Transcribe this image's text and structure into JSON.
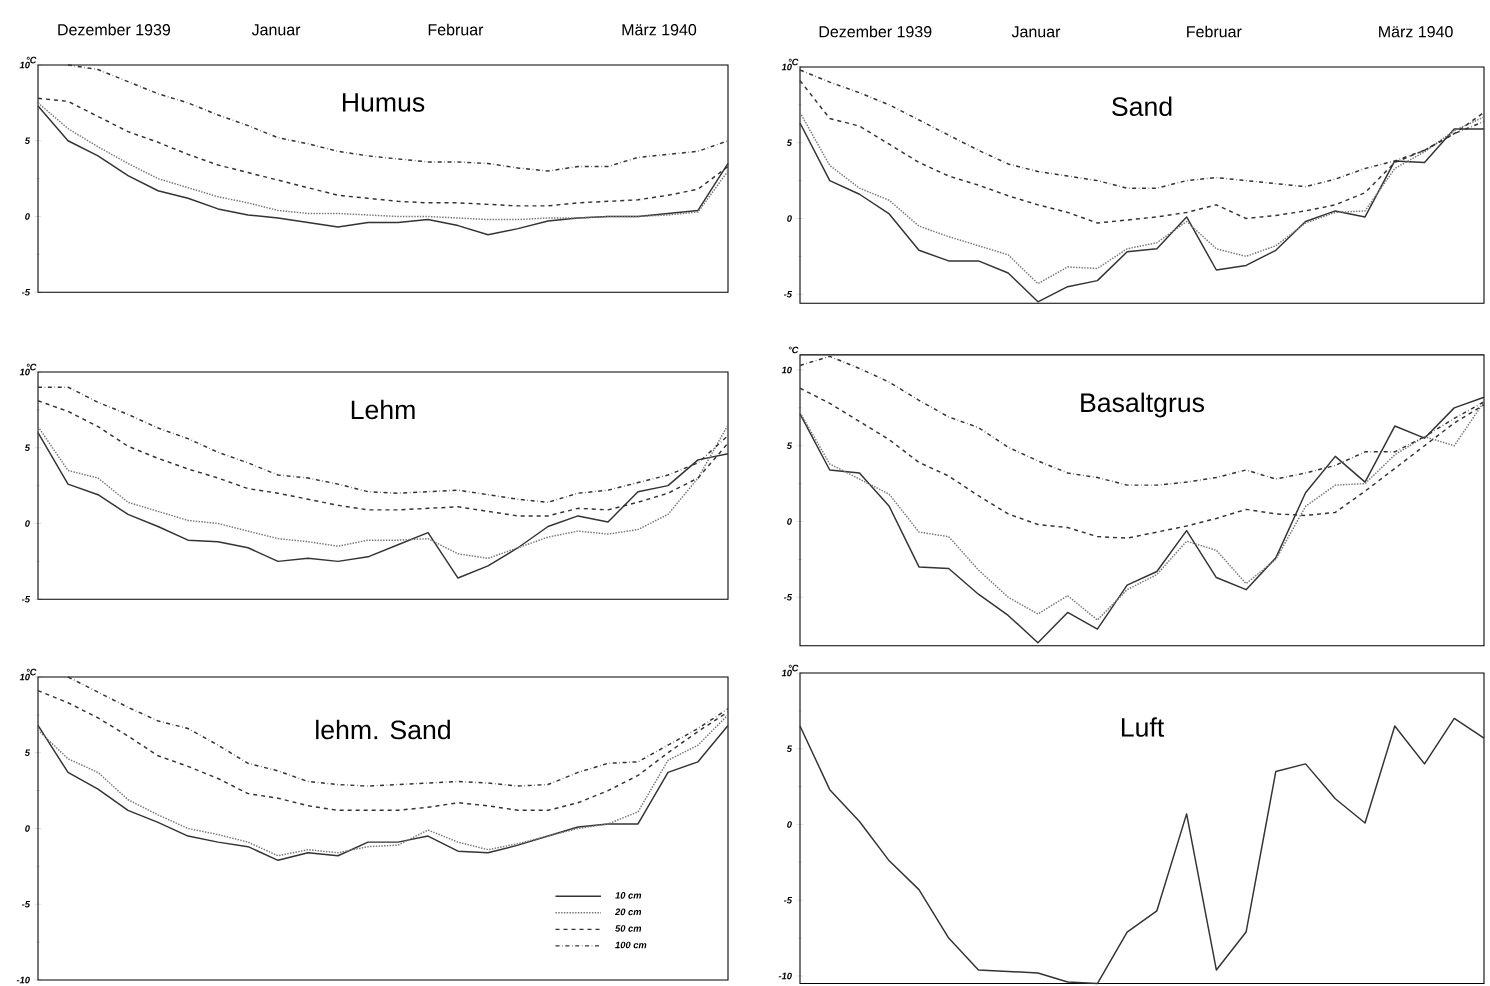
{
  "chart_data": [
    {
      "type": "line",
      "title": "Humus",
      "ylabel": "°C",
      "ylim": [
        -5,
        10
      ],
      "yticks": [
        10,
        5,
        0,
        -5
      ],
      "tick_labels": "y",
      "annotations": [
        "Dezember 1939",
        "Januar",
        "Februar",
        "März 1940"
      ],
      "categories": [
        null,
        null,
        null,
        null,
        null,
        null,
        null,
        null,
        null,
        null,
        null,
        null,
        null,
        null,
        null,
        null,
        null,
        null,
        null,
        null,
        null,
        null,
        null,
        null
      ],
      "series": [
        {
          "color": "#333333",
          "line_style": "solid",
          "values": [
            7.3,
            5.0,
            4.0,
            2.7,
            1.7,
            1.2,
            0.5,
            0.1,
            -0.1,
            -0.4,
            -0.7,
            -0.4,
            -0.4,
            -0.2,
            -0.6,
            -1.2,
            -0.8,
            -0.3,
            -0.1,
            0.0,
            0.0,
            0.2,
            0.4,
            3.5
          ]
        },
        {
          "color": "#777777",
          "line_style": "dotted",
          "values": [
            7.5,
            5.8,
            4.6,
            3.5,
            2.5,
            1.9,
            1.3,
            0.9,
            0.4,
            0.2,
            0.2,
            0.1,
            0.0,
            0.0,
            -0.1,
            -0.2,
            -0.2,
            -0.1,
            -0.1,
            0.0,
            0.0,
            0.1,
            0.3,
            3.0
          ]
        },
        {
          "color": "#333333",
          "line_style": "dashed",
          "values": [
            7.8,
            7.6,
            6.6,
            5.6,
            4.9,
            4.1,
            3.4,
            2.9,
            2.4,
            1.9,
            1.4,
            1.2,
            1.0,
            0.9,
            0.9,
            0.8,
            0.7,
            0.7,
            0.9,
            1.0,
            1.1,
            1.4,
            1.8,
            3.3
          ]
        },
        {
          "color": "#333333",
          "line_style": "dashdot",
          "values": [
            null,
            10.0,
            9.7,
            8.9,
            8.1,
            7.5,
            6.7,
            6.0,
            5.2,
            4.8,
            4.3,
            4.0,
            3.8,
            3.6,
            3.6,
            3.5,
            3.2,
            3.0,
            3.3,
            3.3,
            3.9,
            4.1,
            4.3,
            5.0
          ]
        }
      ]
    },
    {
      "type": "line",
      "title": "Sand",
      "ylabel": "°C",
      "ylim": [
        -5.6,
        10
      ],
      "yticks": [
        10,
        5,
        0,
        -5
      ],
      "tick_labels": "y",
      "annotations": [
        "Dezember 1939",
        "Januar",
        "Februar",
        "März 1940"
      ],
      "categories": [
        null,
        null,
        null,
        null,
        null,
        null,
        null,
        null,
        null,
        null,
        null,
        null,
        null,
        null,
        null,
        null,
        null,
        null,
        null,
        null,
        null,
        null,
        null,
        null
      ],
      "series": [
        {
          "color": "#333333",
          "line_style": "solid",
          "values": [
            6.3,
            2.5,
            1.6,
            0.3,
            -2.1,
            -2.8,
            -2.8,
            -3.6,
            -5.5,
            -4.5,
            -4.1,
            -2.2,
            -2.0,
            0.1,
            -3.4,
            -3.1,
            -2.1,
            -0.2,
            0.5,
            0.1,
            3.8,
            3.7,
            5.9,
            5.9
          ]
        },
        {
          "color": "#777777",
          "line_style": "dotted",
          "values": [
            7.0,
            3.5,
            2.0,
            1.2,
            -0.5,
            -1.2,
            -1.8,
            -2.4,
            -4.3,
            -3.2,
            -3.3,
            -2.0,
            -1.6,
            -0.2,
            -2.0,
            -2.5,
            -1.8,
            -0.3,
            0.4,
            0.5,
            3.3,
            4.4,
            5.8,
            6.7
          ]
        },
        {
          "color": "#333333",
          "line_style": "dashed",
          "values": [
            9.1,
            6.6,
            6.1,
            4.9,
            3.7,
            2.8,
            2.2,
            1.5,
            0.9,
            0.4,
            -0.3,
            -0.1,
            0.1,
            0.4,
            0.9,
            0.0,
            0.2,
            0.5,
            0.9,
            1.7,
            3.7,
            4.5,
            5.6,
            7.0
          ]
        },
        {
          "color": "#333333",
          "line_style": "dashdot",
          "values": [
            9.8,
            9.0,
            8.3,
            7.5,
            6.5,
            5.5,
            4.5,
            3.6,
            3.1,
            2.8,
            2.5,
            2.0,
            2.0,
            2.5,
            2.7,
            2.5,
            2.3,
            2.1,
            2.6,
            3.3,
            3.8,
            4.5,
            5.6,
            6.4
          ]
        }
      ]
    },
    {
      "type": "line",
      "title": "Lehm",
      "ylabel": "°C",
      "ylim": [
        -5,
        10
      ],
      "yticks": [
        10,
        5,
        0,
        -5
      ],
      "tick_labels": "y",
      "categories": [
        null,
        null,
        null,
        null,
        null,
        null,
        null,
        null,
        null,
        null,
        null,
        null,
        null,
        null,
        null,
        null,
        null,
        null,
        null,
        null,
        null,
        null,
        null,
        null
      ],
      "series": [
        {
          "color": "#333333",
          "line_style": "solid",
          "values": [
            6.0,
            2.6,
            1.9,
            0.6,
            -0.2,
            -1.1,
            -1.2,
            -1.6,
            -2.5,
            -2.3,
            -2.5,
            -2.2,
            -1.4,
            -0.6,
            -3.6,
            -2.8,
            -1.6,
            -0.2,
            0.5,
            0.1,
            2.1,
            2.5,
            4.2,
            4.6
          ]
        },
        {
          "color": "#777777",
          "line_style": "dotted",
          "values": [
            6.4,
            3.5,
            3.0,
            1.4,
            0.8,
            0.2,
            0.0,
            -0.5,
            -1.0,
            -1.2,
            -1.5,
            -1.1,
            -1.1,
            -1.0,
            -2.0,
            -2.3,
            -1.6,
            -0.9,
            -0.5,
            -0.7,
            -0.4,
            0.6,
            3.0,
            6.5
          ]
        },
        {
          "color": "#333333",
          "line_style": "dashed",
          "values": [
            8.1,
            7.4,
            6.4,
            5.1,
            4.3,
            3.6,
            3.0,
            2.3,
            2.0,
            1.6,
            1.2,
            0.9,
            0.9,
            1.0,
            1.1,
            0.8,
            0.5,
            0.5,
            1.0,
            0.9,
            1.4,
            2.0,
            3.0,
            5.3
          ]
        },
        {
          "color": "#333333",
          "line_style": "dashdot",
          "values": [
            9.0,
            9.0,
            8.0,
            7.2,
            6.3,
            5.6,
            4.7,
            4.0,
            3.2,
            3.0,
            2.6,
            2.1,
            2.0,
            2.1,
            2.2,
            1.9,
            1.6,
            1.4,
            2.0,
            2.2,
            2.7,
            3.2,
            4.0,
            5.8
          ]
        }
      ]
    },
    {
      "type": "line",
      "title": "Basaltgrus",
      "ylabel": "°C",
      "ylim": [
        -8.2,
        11
      ],
      "yticks": [
        10,
        5,
        0,
        -5
      ],
      "tick_labels": "y",
      "categories": [
        null,
        null,
        null,
        null,
        null,
        null,
        null,
        null,
        null,
        null,
        null,
        null,
        null,
        null,
        null,
        null,
        null,
        null,
        null,
        null,
        null,
        null,
        null,
        null
      ],
      "series": [
        {
          "color": "#333333",
          "line_style": "solid",
          "values": [
            7.1,
            3.4,
            3.2,
            1.0,
            -3.0,
            -3.1,
            -4.8,
            -6.2,
            -8.0,
            -6.0,
            -7.1,
            -4.2,
            -3.3,
            -0.6,
            -3.7,
            -4.5,
            -2.4,
            1.9,
            4.3,
            2.6,
            6.3,
            5.5,
            7.5,
            8.2
          ]
        },
        {
          "color": "#777777",
          "line_style": "dotted",
          "values": [
            7.2,
            3.8,
            2.8,
            1.8,
            -0.7,
            -1.0,
            -3.2,
            -5.0,
            -6.1,
            -4.9,
            -6.5,
            -4.5,
            -3.5,
            -1.3,
            -1.9,
            -4.1,
            -2.5,
            1.0,
            2.4,
            2.5,
            4.4,
            5.6,
            5.0,
            7.9
          ]
        },
        {
          "color": "#333333",
          "line_style": "dashed",
          "values": [
            8.8,
            7.8,
            6.6,
            5.4,
            3.9,
            3.0,
            1.7,
            0.5,
            -0.2,
            -0.4,
            -1.0,
            -1.1,
            -0.7,
            -0.3,
            0.2,
            0.8,
            0.5,
            0.4,
            0.6,
            2.0,
            3.5,
            5.0,
            6.5,
            7.7
          ]
        },
        {
          "color": "#333333",
          "line_style": "dashdot",
          "values": [
            10.3,
            10.9,
            10.1,
            9.2,
            8.0,
            6.9,
            6.2,
            4.9,
            4.0,
            3.2,
            2.9,
            2.4,
            2.4,
            2.6,
            2.9,
            3.4,
            2.8,
            3.2,
            3.7,
            4.6,
            4.6,
            5.6,
            6.8,
            7.9
          ]
        }
      ]
    },
    {
      "type": "line",
      "title": "lehm. Sand",
      "ylabel": "°C",
      "ylim": [
        -10,
        10
      ],
      "yticks": [
        10,
        5,
        0,
        -5,
        -10
      ],
      "tick_labels": "y",
      "legend": "bottom right",
      "categories": [
        null,
        null,
        null,
        null,
        null,
        null,
        null,
        null,
        null,
        null,
        null,
        null,
        null,
        null,
        null,
        null,
        null,
        null,
        null,
        null,
        null,
        null,
        null,
        null
      ],
      "series": [
        {
          "name": "10 cm",
          "color": "#333333",
          "line_style": "solid",
          "values": [
            6.8,
            3.7,
            2.6,
            1.2,
            0.4,
            -0.5,
            -0.9,
            -1.2,
            -2.1,
            -1.6,
            -1.8,
            -0.9,
            -0.9,
            -0.5,
            -1.5,
            -1.6,
            -1.1,
            -0.5,
            0.1,
            0.3,
            0.3,
            3.7,
            4.4,
            6.8
          ]
        },
        {
          "name": "20 cm",
          "color": "#777777",
          "line_style": "dotted",
          "values": [
            6.5,
            4.6,
            3.7,
            1.9,
            0.9,
            0.0,
            -0.4,
            -0.9,
            -1.8,
            -1.4,
            -1.6,
            -1.2,
            -1.1,
            -0.1,
            -0.9,
            -1.4,
            -1.0,
            -0.5,
            0.0,
            0.3,
            1.1,
            4.5,
            5.5,
            7.5
          ]
        },
        {
          "name": "50 cm",
          "color": "#333333",
          "line_style": "dashed",
          "values": [
            9.1,
            8.3,
            7.3,
            6.1,
            4.8,
            4.1,
            3.3,
            2.3,
            2.0,
            1.5,
            1.2,
            1.2,
            1.2,
            1.4,
            1.7,
            1.5,
            1.2,
            1.2,
            1.7,
            2.5,
            3.5,
            5.0,
            6.4,
            7.7
          ]
        },
        {
          "name": "100 cm",
          "color": "#333333",
          "line_style": "dashdot",
          "values": [
            null,
            10.0,
            9.0,
            8.0,
            7.1,
            6.6,
            5.5,
            4.3,
            3.8,
            3.1,
            2.9,
            2.8,
            2.9,
            3.0,
            3.1,
            3.0,
            2.8,
            2.9,
            3.7,
            4.3,
            4.4,
            5.5,
            6.6,
            7.9
          ]
        }
      ]
    },
    {
      "type": "line",
      "title": "Luft",
      "ylabel": "°C",
      "ylim": [
        -10.5,
        10
      ],
      "yticks": [
        10,
        5,
        0,
        -5,
        -10
      ],
      "tick_labels": "y",
      "categories": [
        null,
        null,
        null,
        null,
        null,
        null,
        null,
        null,
        null,
        null,
        null,
        null,
        null,
        null,
        null,
        null,
        null,
        null,
        null,
        null,
        null,
        null,
        null,
        null
      ],
      "series": [
        {
          "color": "#333333",
          "line_style": "solid",
          "values": [
            6.5,
            2.3,
            0.2,
            -2.4,
            -4.3,
            -7.5,
            -9.6,
            -9.7,
            -9.8,
            -10.4,
            -10.5,
            -7.1,
            -5.7,
            0.7,
            -9.6,
            -7.1,
            3.5,
            4.0,
            1.7,
            0.1,
            6.5,
            4.0,
            7.0,
            5.7
          ]
        }
      ]
    }
  ]
}
